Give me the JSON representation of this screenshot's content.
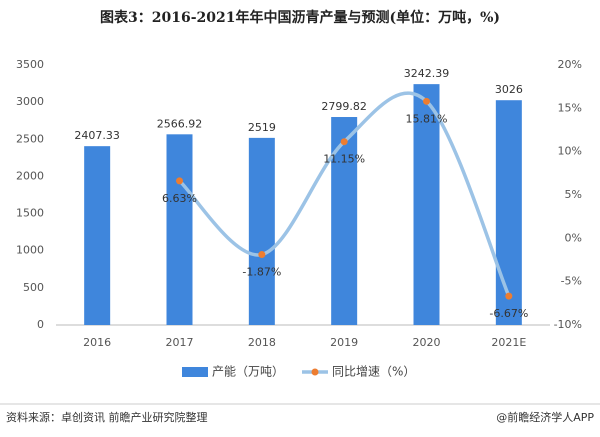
{
  "chart_data": {
    "type": "bar",
    "title": "图表3：2016-2021年年中国沥青产量与预测(单位：万吨，%)",
    "categories": [
      "2016",
      "2017",
      "2018",
      "2019",
      "2020",
      "2021E"
    ],
    "series": [
      {
        "name": "产能（万吨）",
        "type": "bar",
        "color": "#3f86dc",
        "values": [
          2407.33,
          2566.92,
          2519,
          2799.82,
          3242.39,
          3026
        ]
      },
      {
        "name": "同比增速（%）",
        "type": "line",
        "axis": "y2",
        "color": "#9cc3e6",
        "marker_color": "#ed7d31",
        "values": [
          null,
          6.63,
          -1.87,
          11.15,
          15.81,
          -6.67
        ],
        "value_labels": [
          null,
          "6.63%",
          "-1.87%",
          "11.15%",
          "15.81%",
          "-6.67%"
        ]
      }
    ],
    "ylim": [
      0,
      3500
    ],
    "yticks": [
      0,
      500,
      1000,
      1500,
      2000,
      2500,
      3000,
      3500
    ],
    "y2lim": [
      -10,
      20
    ],
    "y2ticks": [
      {
        "value": -10,
        "label": "-10%"
      },
      {
        "value": -5,
        "label": "-5%"
      },
      {
        "value": 0,
        "label": "0%"
      },
      {
        "value": 5,
        "label": "5%"
      },
      {
        "value": 10,
        "label": "10%"
      },
      {
        "value": 15,
        "label": "15%"
      },
      {
        "value": 20,
        "label": "20%"
      }
    ],
    "source": "资料来源：卓创资讯 前瞻产业研究院整理",
    "credit": "@前瞻经济学人APP"
  }
}
